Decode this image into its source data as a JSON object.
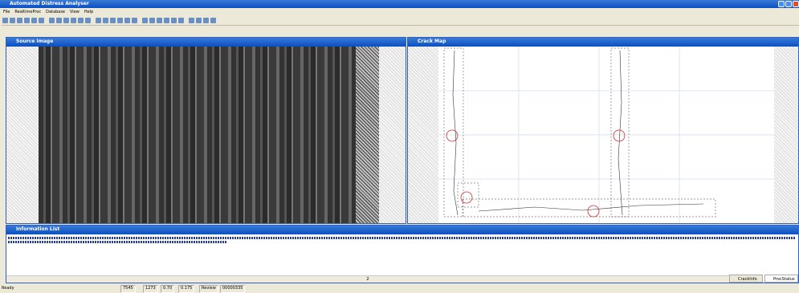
{
  "window": {
    "title": "Automated Distress Analyser",
    "menu": [
      "File",
      "RealtimeProc",
      "Database",
      "View",
      "Help"
    ]
  },
  "panels": {
    "source": "Source Image",
    "crack_map": "Crack Map",
    "info": "Information List"
  },
  "info_list": {
    "page": "2",
    "tabs": [
      "CrackInfo",
      "ProcStatus"
    ]
  },
  "status_bar": [
    "Ready",
    "7545",
    "1273",
    "0.70",
    "0.175",
    "Review",
    "00000335"
  ]
}
